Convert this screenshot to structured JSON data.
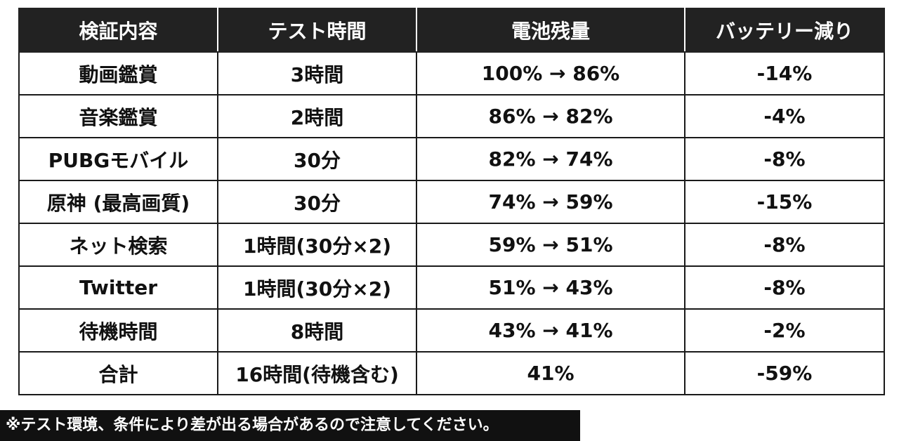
{
  "table": {
    "headers": [
      "検証内容",
      "テスト時間",
      "電池残量",
      "バッテリー減り"
    ],
    "rows": [
      [
        "動画鑑賞",
        "3時間",
        "100% → 86%",
        "-14%"
      ],
      [
        "音楽鑑賞",
        "2時間",
        "86% → 82%",
        "-4%"
      ],
      [
        "PUBGモバイル",
        "30分",
        "82% → 74%",
        "-8%"
      ],
      [
        "原神 (最高画質)",
        "30分",
        "74% → 59%",
        "-15%"
      ],
      [
        "ネット検索",
        "1時間(30分×2)",
        "59% → 51%",
        "-8%"
      ],
      [
        "Twitter",
        "1時間(30分×2)",
        "51% → 43%",
        "-8%"
      ],
      [
        "待機時間",
        "8時間",
        "43% → 41%",
        "-2%"
      ],
      [
        "合計",
        "16時間(待機含む)",
        "41%",
        "-59%"
      ]
    ]
  },
  "footnote": "※テスト環境、条件により差が出る場合があるので注意してください。",
  "colors": {
    "header_bg": "#222222",
    "header_text": "#ffffff",
    "border": "#1a1a1a",
    "footnote_bg": "#111111"
  }
}
